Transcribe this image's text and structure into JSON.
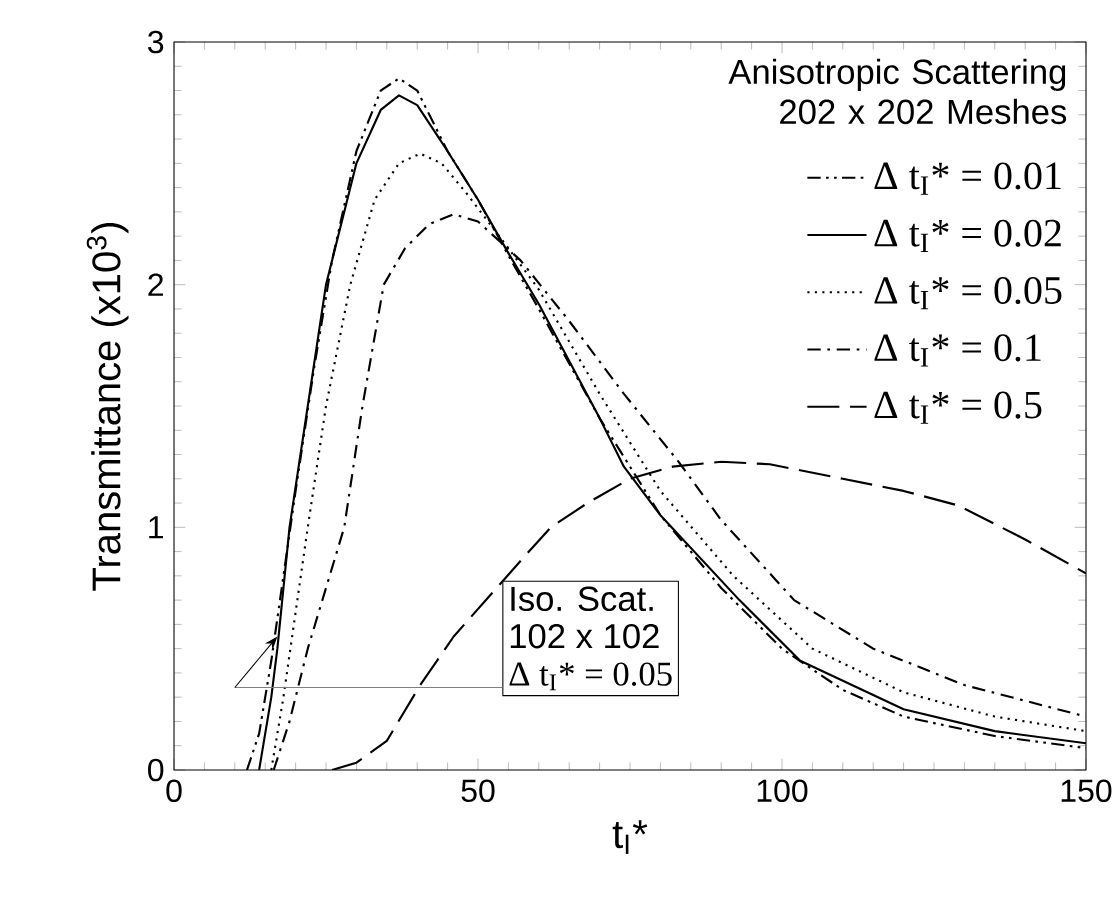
{
  "chart_data": {
    "type": "line",
    "xlabel": "t$_{I}$*",
    "ylabel": "Transmittance (x10$^{3}$)",
    "legend_title": "Anisotropic Scattering 202 x 202 Meshes",
    "legend": "top right",
    "xlim": [
      0,
      150
    ],
    "ylim": [
      0,
      3
    ],
    "xticks": [
      0,
      50,
      100,
      150
    ],
    "yticks": [
      0,
      1,
      2,
      3
    ],
    "series": [
      {
        "name": "Δ t$_{I}$* = 0.01",
        "color": "#000000",
        "line_style": "dash-dot-dot",
        "x": [
          12,
          14,
          16,
          18,
          20,
          23,
          26,
          30,
          34,
          37,
          40,
          45,
          50,
          55,
          60,
          70,
          80,
          90,
          100,
          110,
          120,
          135,
          150
        ],
        "values": [
          0,
          0.15,
          0.45,
          0.8,
          1.15,
          1.65,
          2.1,
          2.55,
          2.8,
          2.85,
          2.8,
          2.55,
          2.35,
          2.12,
          1.9,
          1.45,
          1.05,
          0.75,
          0.5,
          0.33,
          0.22,
          0.14,
          0.09
        ]
      },
      {
        "name": "Δ t$_{I}$* = 0.02",
        "color": "#000000",
        "line_style": "solid",
        "x": [
          14,
          16,
          17,
          19,
          22,
          25,
          30,
          34,
          37,
          40,
          45,
          50,
          55,
          60,
          70,
          74,
          80,
          93,
          103,
          120,
          135,
          150
        ],
        "values": [
          0,
          0.3,
          0.5,
          1.0,
          1.5,
          2.0,
          2.5,
          2.72,
          2.78,
          2.74,
          2.55,
          2.35,
          2.13,
          1.92,
          1.45,
          1.25,
          1.05,
          0.7,
          0.45,
          0.25,
          0.16,
          0.11
        ]
      },
      {
        "name": "Δ t$_{I}$* = 0.05",
        "color": "#000000",
        "line_style": "dotted",
        "x": [
          16,
          18,
          20,
          22,
          25,
          29,
          33,
          37,
          40.5,
          44,
          48,
          55,
          60,
          70,
          80,
          92,
          105,
          120,
          135,
          150
        ],
        "values": [
          0,
          0.3,
          0.65,
          1.0,
          1.5,
          2.0,
          2.35,
          2.5,
          2.54,
          2.5,
          2.38,
          2.15,
          1.98,
          1.55,
          1.15,
          0.8,
          0.5,
          0.32,
          0.22,
          0.16
        ]
      },
      {
        "name": "Δ t$_{I}$* = 0.1",
        "color": "#000000",
        "line_style": "dash-dot",
        "x": [
          16.4,
          19,
          22,
          25,
          28,
          31,
          34.5,
          38,
          42,
          46,
          50,
          57,
          65,
          74,
          83,
          90,
          102,
          115,
          130,
          150
        ],
        "values": [
          0,
          0.2,
          0.5,
          0.75,
          1.0,
          1.5,
          2.0,
          2.15,
          2.25,
          2.29,
          2.26,
          2.1,
          1.85,
          1.55,
          1.27,
          1.03,
          0.7,
          0.5,
          0.35,
          0.22
        ]
      },
      {
        "name": "Δ t$_{I}$* = 0.5",
        "color": "#000000",
        "line_style": "long-dash",
        "x": [
          26,
          30,
          35,
          40.5,
          46,
          52,
          58,
          62,
          68,
          75,
          82,
          90,
          98,
          110,
          120,
          129,
          140,
          150
        ],
        "values": [
          0,
          0.03,
          0.12,
          0.35,
          0.55,
          0.72,
          0.89,
          1.0,
          1.1,
          1.2,
          1.25,
          1.27,
          1.26,
          1.2,
          1.15,
          1.09,
          0.95,
          0.81
        ]
      }
    ],
    "annotations": [
      "Iso. Scat.",
      "102 x 102",
      "Δ t$_{I}$* = 0.05"
    ]
  }
}
